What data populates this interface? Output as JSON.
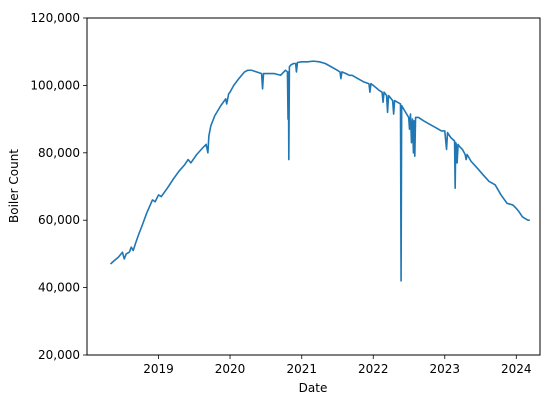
{
  "chart_data": {
    "type": "line",
    "title": "",
    "xlabel": "Date",
    "ylabel": "Boiler Count",
    "xlim": [
      "2018-01-01",
      "2024-05-01"
    ],
    "ylim": [
      20000,
      120000
    ],
    "grid": false,
    "legend": "none",
    "x_ticks": [
      {
        "date": "2019-01-01",
        "label": "2019"
      },
      {
        "date": "2020-01-01",
        "label": "2020"
      },
      {
        "date": "2021-01-01",
        "label": "2021"
      },
      {
        "date": "2022-01-01",
        "label": "2022"
      },
      {
        "date": "2023-01-01",
        "label": "2023"
      },
      {
        "date": "2024-01-01",
        "label": "2024"
      }
    ],
    "y_ticks": [
      {
        "value": 20000,
        "label": "20,000"
      },
      {
        "value": 40000,
        "label": "40,000"
      },
      {
        "value": 60000,
        "label": "60,000"
      },
      {
        "value": 80000,
        "label": "80,000"
      },
      {
        "value": 100000,
        "label": "100,000"
      },
      {
        "value": 120000,
        "label": "120,000"
      }
    ],
    "series": [
      {
        "color": "#1f77b4",
        "x": [
          "2018-05-01",
          "2018-05-20",
          "2018-06-10",
          "2018-07-01",
          "2018-07-10",
          "2018-07-20",
          "2018-08-05",
          "2018-08-15",
          "2018-08-25",
          "2018-09-05",
          "2018-09-20",
          "2018-10-10",
          "2018-11-01",
          "2018-12-01",
          "2018-12-15",
          "2019-01-01",
          "2019-01-15",
          "2019-02-15",
          "2019-03-15",
          "2019-04-15",
          "2019-05-15",
          "2019-06-01",
          "2019-06-15",
          "2019-07-15",
          "2019-08-15",
          "2019-09-01",
          "2019-09-10",
          "2019-09-15",
          "2019-09-25",
          "2019-10-15",
          "2019-11-15",
          "2019-12-10",
          "2019-12-15",
          "2019-12-25",
          "2020-01-01",
          "2020-01-20",
          "2020-02-15",
          "2020-03-15",
          "2020-04-01",
          "2020-04-20",
          "2020-05-15",
          "2020-06-10",
          "2020-06-15",
          "2020-06-20",
          "2020-07-15",
          "2020-08-15",
          "2020-09-15",
          "2020-10-10",
          "2020-10-20",
          "2020-10-23",
          "2020-10-25",
          "2020-10-27",
          "2020-10-30",
          "2020-11-05",
          "2020-11-20",
          "2020-12-01",
          "2020-12-05",
          "2020-12-10",
          "2021-01-01",
          "2021-02-01",
          "2021-03-01",
          "2021-04-01",
          "2021-05-01",
          "2021-06-01",
          "2021-07-01",
          "2021-07-15",
          "2021-07-20",
          "2021-07-25",
          "2021-08-15",
          "2021-09-01",
          "2021-09-15",
          "2021-10-15",
          "2021-11-15",
          "2021-12-10",
          "2021-12-15",
          "2021-12-20",
          "2022-01-01",
          "2022-02-01",
          "2022-02-15",
          "2022-02-20",
          "2022-02-25",
          "2022-03-10",
          "2022-03-15",
          "2022-03-20",
          "2022-04-10",
          "2022-04-15",
          "2022-04-20",
          "2022-05-20",
          "2022-05-23",
          "2022-05-26",
          "2022-06-15",
          "2022-07-01",
          "2022-07-05",
          "2022-07-10",
          "2022-07-15",
          "2022-07-20",
          "2022-07-25",
          "2022-07-28",
          "2022-08-01",
          "2022-08-05",
          "2022-08-20",
          "2022-09-15",
          "2022-10-15",
          "2022-11-15",
          "2022-12-15",
          "2023-01-01",
          "2023-01-10",
          "2023-01-15",
          "2023-01-20",
          "2023-02-01",
          "2023-02-20",
          "2023-02-23",
          "2023-02-26",
          "2023-03-01",
          "2023-03-05",
          "2023-03-10",
          "2023-03-15",
          "2023-04-01",
          "2023-04-15",
          "2023-04-20",
          "2023-04-25",
          "2023-05-15",
          "2023-06-15",
          "2023-07-15",
          "2023-08-15",
          "2023-09-15",
          "2023-10-15",
          "2023-11-15",
          "2023-12-15",
          "2024-01-01",
          "2024-01-15",
          "2024-02-01",
          "2024-02-15",
          "2024-03-01",
          "2024-03-10"
        ],
        "y": [
          47000,
          48000,
          49000,
          50500,
          48500,
          50000,
          50500,
          52000,
          51000,
          53000,
          55500,
          58500,
          62000,
          66000,
          65500,
          67500,
          67000,
          69500,
          72000,
          74500,
          76500,
          78000,
          77000,
          79500,
          81500,
          82500,
          80000,
          85000,
          88000,
          91000,
          94000,
          96000,
          94500,
          97500,
          98000,
          100000,
          102000,
          104000,
          104500,
          104500,
          104000,
          103500,
          99000,
          103500,
          103500,
          103500,
          103000,
          104500,
          104000,
          90000,
          104000,
          78000,
          105500,
          106000,
          106500,
          106500,
          104000,
          106800,
          107000,
          107000,
          107200,
          107000,
          106500,
          105500,
          104500,
          104000,
          102000,
          104000,
          103500,
          103000,
          103000,
          102000,
          101000,
          100500,
          98000,
          100500,
          100000,
          98500,
          98000,
          95000,
          98000,
          97000,
          92000,
          97000,
          95500,
          91500,
          95500,
          94500,
          42000,
          94000,
          92000,
          90500,
          87000,
          91500,
          83000,
          90000,
          80000,
          89500,
          79000,
          90500,
          90500,
          89500,
          88500,
          87500,
          86500,
          86500,
          81000,
          86000,
          85500,
          84500,
          83500,
          69500,
          83000,
          82500,
          77000,
          82500,
          82000,
          81000,
          79500,
          78000,
          79500,
          77500,
          75500,
          73500,
          71500,
          70500,
          67500,
          65000,
          64500,
          63500,
          62500,
          61000,
          60500,
          60000,
          60000
        ]
      }
    ]
  }
}
